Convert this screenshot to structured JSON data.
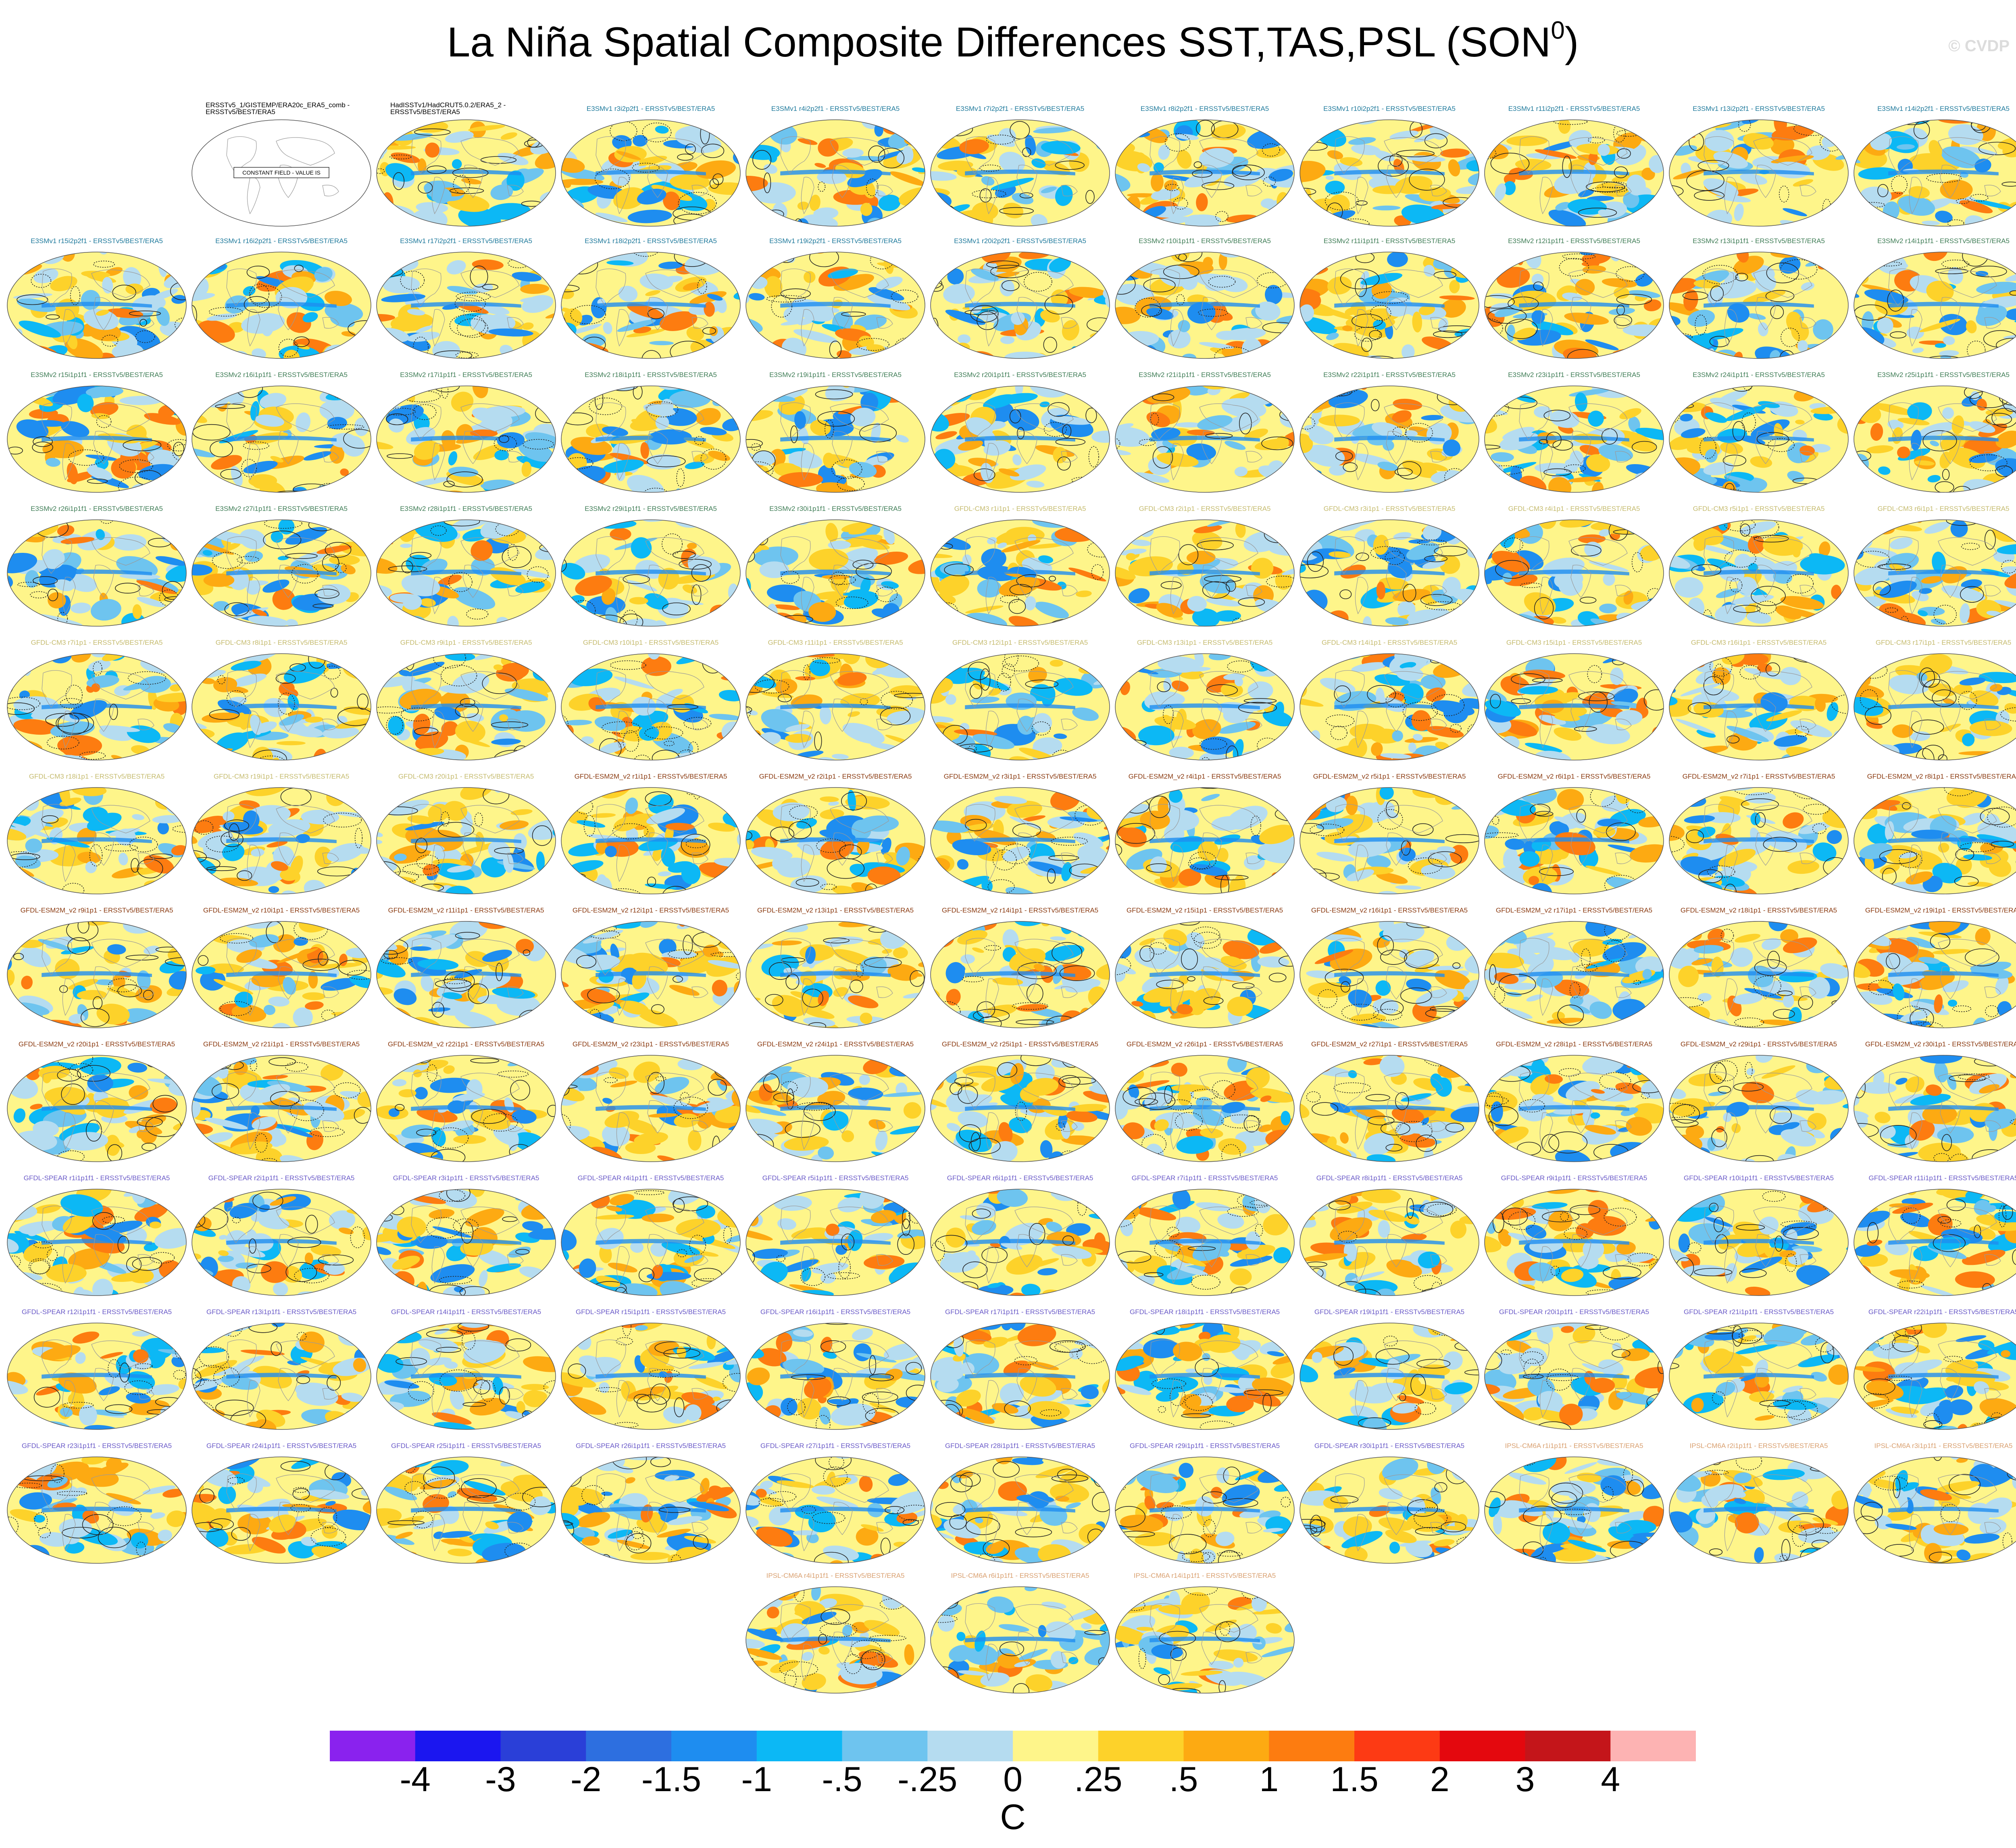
{
  "title_main": "La Niña Spatial Composite Differences SST,TAS,PSL (SON",
  "title_sup": "0",
  "title_end": ")",
  "watermark": "© CVDP",
  "constant_field_label": "CONSTANT FIELD - VALUE IS",
  "chart_data": {
    "type": "heatmap",
    "title": "La Niña Spatial Composite Differences SST,TAS,PSL (SON0)",
    "colorbar": {
      "unit": "C",
      "tick_labels": [
        "-4",
        "-3",
        "-2",
        "-1.5",
        "-1",
        "-.5",
        "-.25",
        "0",
        ".25",
        ".5",
        "1",
        "1.5",
        "2",
        "3",
        "4"
      ],
      "colors": [
        "#8a22ee",
        "#1b16f0",
        "#2a3fd8",
        "#2d6fe0",
        "#1e8df0",
        "#0cb8f5",
        "#6ec4ef",
        "#b5dcf0",
        "#fef58a",
        "#fdd22a",
        "#fdaa12",
        "#fd7c10",
        "#fd3a14",
        "#e4080e",
        "#c4151a",
        "#fdb3b3"
      ]
    },
    "panels": [
      {
        "label": "ERSSTv5_1/GISTEMP/ERA20c_ERA5_comb - ERSSTv5/BEST/ERA5",
        "color": "#000000",
        "constant": true
      },
      {
        "label": "HadISSTv1/HadCRUT5.0.2/ERA5_2 - ERSSTv5/BEST/ERA5",
        "color": "#000000"
      },
      {
        "label": "E3SMv1 r3i2p2f1 - ERSSTv5/BEST/ERA5",
        "color": "#1f7a9c"
      },
      {
        "label": "E3SMv1 r4i2p2f1 - ERSSTv5/BEST/ERA5",
        "color": "#1f7a9c"
      },
      {
        "label": "E3SMv1 r7i2p2f1 - ERSSTv5/BEST/ERA5",
        "color": "#1f7a9c"
      },
      {
        "label": "E3SMv1 r8i2p2f1 - ERSSTv5/BEST/ERA5",
        "color": "#1f7a9c"
      },
      {
        "label": "E3SMv1 r10i2p2f1 - ERSSTv5/BEST/ERA5",
        "color": "#1f7a9c"
      },
      {
        "label": "E3SMv1 r11i2p2f1 - ERSSTv5/BEST/ERA5",
        "color": "#1f7a9c"
      },
      {
        "label": "E3SMv1 r13i2p2f1 - ERSSTv5/BEST/ERA5",
        "color": "#1f7a9c"
      },
      {
        "label": "E3SMv1 r14i2p2f1 - ERSSTv5/BEST/ERA5",
        "color": "#1f7a9c"
      },
      {
        "label": "E3SMv1 r15i2p2f1 - ERSSTv5/BEST/ERA5",
        "color": "#1f7a9c"
      },
      {
        "label": "E3SMv1 r16i2p2f1 - ERSSTv5/BEST/ERA5",
        "color": "#1f7a9c"
      },
      {
        "label": "E3SMv1 r17i2p2f1 - ERSSTv5/BEST/ERA5",
        "color": "#1f7a9c"
      },
      {
        "label": "E3SMv1 r18i2p2f1 - ERSSTv5/BEST/ERA5",
        "color": "#1f7a9c"
      },
      {
        "label": "E3SMv1 r19i2p2f1 - ERSSTv5/BEST/ERA5",
        "color": "#1f7a9c"
      },
      {
        "label": "E3SMv1 r20i2p2f1 - ERSSTv5/BEST/ERA5",
        "color": "#1f7a9c"
      },
      {
        "label": "E3SMv2 r10i1p1f1 - ERSSTv5/BEST/ERA5",
        "color": "#3f7d56"
      },
      {
        "label": "E3SMv2 r11i1p1f1 - ERSSTv5/BEST/ERA5",
        "color": "#3f7d56"
      },
      {
        "label": "E3SMv2 r12i1p1f1 - ERSSTv5/BEST/ERA5",
        "color": "#3f7d56"
      },
      {
        "label": "E3SMv2 r13i1p1f1 - ERSSTv5/BEST/ERA5",
        "color": "#3f7d56"
      },
      {
        "label": "E3SMv2 r14i1p1f1 - ERSSTv5/BEST/ERA5",
        "color": "#3f7d56"
      },
      {
        "label": "E3SMv2 r15i1p1f1 - ERSSTv5/BEST/ERA5",
        "color": "#3f7d56"
      },
      {
        "label": "E3SMv2 r16i1p1f1 - ERSSTv5/BEST/ERA5",
        "color": "#3f7d56"
      },
      {
        "label": "E3SMv2 r17i1p1f1 - ERSSTv5/BEST/ERA5",
        "color": "#3f7d56"
      },
      {
        "label": "E3SMv2 r18i1p1f1 - ERSSTv5/BEST/ERA5",
        "color": "#3f7d56"
      },
      {
        "label": "E3SMv2 r19i1p1f1 - ERSSTv5/BEST/ERA5",
        "color": "#3f7d56"
      },
      {
        "label": "E3SMv2 r20i1p1f1 - ERSSTv5/BEST/ERA5",
        "color": "#3f7d56"
      },
      {
        "label": "E3SMv2 r21i1p1f1 - ERSSTv5/BEST/ERA5",
        "color": "#3f7d56"
      },
      {
        "label": "E3SMv2 r22i1p1f1 - ERSSTv5/BEST/ERA5",
        "color": "#3f7d56"
      },
      {
        "label": "E3SMv2 r23i1p1f1 - ERSSTv5/BEST/ERA5",
        "color": "#3f7d56"
      },
      {
        "label": "E3SMv2 r24i1p1f1 - ERSSTv5/BEST/ERA5",
        "color": "#3f7d56"
      },
      {
        "label": "E3SMv2 r25i1p1f1 - ERSSTv5/BEST/ERA5",
        "color": "#3f7d56"
      },
      {
        "label": "E3SMv2 r26i1p1f1 - ERSSTv5/BEST/ERA5",
        "color": "#3f7d56"
      },
      {
        "label": "E3SMv2 r27i1p1f1 - ERSSTv5/BEST/ERA5",
        "color": "#3f7d56"
      },
      {
        "label": "E3SMv2 r28i1p1f1 - ERSSTv5/BEST/ERA5",
        "color": "#3f7d56"
      },
      {
        "label": "E3SMv2 r29i1p1f1 - ERSSTv5/BEST/ERA5",
        "color": "#3f7d56"
      },
      {
        "label": "E3SMv2 r30i1p1f1 - ERSSTv5/BEST/ERA5",
        "color": "#3f7d56"
      },
      {
        "label": "GFDL-CM3 r1i1p1 - ERSSTv5/BEST/ERA5",
        "color": "#c5bb6e"
      },
      {
        "label": "GFDL-CM3 r2i1p1 - ERSSTv5/BEST/ERA5",
        "color": "#c5bb6e"
      },
      {
        "label": "GFDL-CM3 r3i1p1 - ERSSTv5/BEST/ERA5",
        "color": "#c5bb6e"
      },
      {
        "label": "GFDL-CM3 r4i1p1 - ERSSTv5/BEST/ERA5",
        "color": "#c5bb6e"
      },
      {
        "label": "GFDL-CM3 r5i1p1 - ERSSTv5/BEST/ERA5",
        "color": "#c5bb6e"
      },
      {
        "label": "GFDL-CM3 r6i1p1 - ERSSTv5/BEST/ERA5",
        "color": "#c5bb6e"
      },
      {
        "label": "GFDL-CM3 r7i1p1 - ERSSTv5/BEST/ERA5",
        "color": "#c5bb6e"
      },
      {
        "label": "GFDL-CM3 r8i1p1 - ERSSTv5/BEST/ERA5",
        "color": "#c5bb6e"
      },
      {
        "label": "GFDL-CM3 r9i1p1 - ERSSTv5/BEST/ERA5",
        "color": "#c5bb6e"
      },
      {
        "label": "GFDL-CM3 r10i1p1 - ERSSTv5/BEST/ERA5",
        "color": "#c5bb6e"
      },
      {
        "label": "GFDL-CM3 r11i1p1 - ERSSTv5/BEST/ERA5",
        "color": "#c5bb6e"
      },
      {
        "label": "GFDL-CM3 r12i1p1 - ERSSTv5/BEST/ERA5",
        "color": "#c5bb6e"
      },
      {
        "label": "GFDL-CM3 r13i1p1 - ERSSTv5/BEST/ERA5",
        "color": "#c5bb6e"
      },
      {
        "label": "GFDL-CM3 r14i1p1 - ERSSTv5/BEST/ERA5",
        "color": "#c5bb6e"
      },
      {
        "label": "GFDL-CM3 r15i1p1 - ERSSTv5/BEST/ERA5",
        "color": "#c5bb6e"
      },
      {
        "label": "GFDL-CM3 r16i1p1 - ERSSTv5/BEST/ERA5",
        "color": "#c5bb6e"
      },
      {
        "label": "GFDL-CM3 r17i1p1 - ERSSTv5/BEST/ERA5",
        "color": "#c5bb6e"
      },
      {
        "label": "GFDL-CM3 r18i1p1 - ERSSTv5/BEST/ERA5",
        "color": "#c5bb6e"
      },
      {
        "label": "GFDL-CM3 r19i1p1 - ERSSTv5/BEST/ERA5",
        "color": "#c5bb6e"
      },
      {
        "label": "GFDL-CM3 r20i1p1 - ERSSTv5/BEST/ERA5",
        "color": "#c5bb6e"
      },
      {
        "label": "GFDL-ESM2M_v2 r1i1p1 - ERSSTv5/BEST/ERA5",
        "color": "#8a3a10"
      },
      {
        "label": "GFDL-ESM2M_v2 r2i1p1 - ERSSTv5/BEST/ERA5",
        "color": "#8a3a10"
      },
      {
        "label": "GFDL-ESM2M_v2 r3i1p1 - ERSSTv5/BEST/ERA5",
        "color": "#8a3a10"
      },
      {
        "label": "GFDL-ESM2M_v2 r4i1p1 - ERSSTv5/BEST/ERA5",
        "color": "#8a3a10"
      },
      {
        "label": "GFDL-ESM2M_v2 r5i1p1 - ERSSTv5/BEST/ERA5",
        "color": "#8a3a10"
      },
      {
        "label": "GFDL-ESM2M_v2 r6i1p1 - ERSSTv5/BEST/ERA5",
        "color": "#8a3a10"
      },
      {
        "label": "GFDL-ESM2M_v2 r7i1p1 - ERSSTv5/BEST/ERA5",
        "color": "#8a3a10"
      },
      {
        "label": "GFDL-ESM2M_v2 r8i1p1 - ERSSTv5/BEST/ERA5",
        "color": "#8a3a10"
      },
      {
        "label": "GFDL-ESM2M_v2 r9i1p1 - ERSSTv5/BEST/ERA5",
        "color": "#8a3a10"
      },
      {
        "label": "GFDL-ESM2M_v2 r10i1p1 - ERSSTv5/BEST/ERA5",
        "color": "#8a3a10"
      },
      {
        "label": "GFDL-ESM2M_v2 r11i1p1 - ERSSTv5/BEST/ERA5",
        "color": "#8a3a10"
      },
      {
        "label": "GFDL-ESM2M_v2 r12i1p1 - ERSSTv5/BEST/ERA5",
        "color": "#8a3a10"
      },
      {
        "label": "GFDL-ESM2M_v2 r13i1p1 - ERSSTv5/BEST/ERA5",
        "color": "#8a3a10"
      },
      {
        "label": "GFDL-ESM2M_v2 r14i1p1 - ERSSTv5/BEST/ERA5",
        "color": "#8a3a10"
      },
      {
        "label": "GFDL-ESM2M_v2 r15i1p1 - ERSSTv5/BEST/ERA5",
        "color": "#8a3a10"
      },
      {
        "label": "GFDL-ESM2M_v2 r16i1p1 - ERSSTv5/BEST/ERA5",
        "color": "#8a3a10"
      },
      {
        "label": "GFDL-ESM2M_v2 r17i1p1 - ERSSTv5/BEST/ERA5",
        "color": "#8a3a10"
      },
      {
        "label": "GFDL-ESM2M_v2 r18i1p1 - ERSSTv5/BEST/ERA5",
        "color": "#8a3a10"
      },
      {
        "label": "GFDL-ESM2M_v2 r19i1p1 - ERSSTv5/BEST/ERA5",
        "color": "#8a3a10"
      },
      {
        "label": "GFDL-ESM2M_v2 r20i1p1 - ERSSTv5/BEST/ERA5",
        "color": "#8a3a10"
      },
      {
        "label": "GFDL-ESM2M_v2 r21i1p1 - ERSSTv5/BEST/ERA5",
        "color": "#8a3a10"
      },
      {
        "label": "GFDL-ESM2M_v2 r22i1p1 - ERSSTv5/BEST/ERA5",
        "color": "#8a3a10"
      },
      {
        "label": "GFDL-ESM2M_v2 r23i1p1 - ERSSTv5/BEST/ERA5",
        "color": "#8a3a10"
      },
      {
        "label": "GFDL-ESM2M_v2 r24i1p1 - ERSSTv5/BEST/ERA5",
        "color": "#8a3a10"
      },
      {
        "label": "GFDL-ESM2M_v2 r25i1p1 - ERSSTv5/BEST/ERA5",
        "color": "#8a3a10"
      },
      {
        "label": "GFDL-ESM2M_v2 r26i1p1 - ERSSTv5/BEST/ERA5",
        "color": "#8a3a10"
      },
      {
        "label": "GFDL-ESM2M_v2 r27i1p1 - ERSSTv5/BEST/ERA5",
        "color": "#8a3a10"
      },
      {
        "label": "GFDL-ESM2M_v2 r28i1p1 - ERSSTv5/BEST/ERA5",
        "color": "#8a3a10"
      },
      {
        "label": "GFDL-ESM2M_v2 r29i1p1 - ERSSTv5/BEST/ERA5",
        "color": "#8a3a10"
      },
      {
        "label": "GFDL-ESM2M_v2 r30i1p1 - ERSSTv5/BEST/ERA5",
        "color": "#8a3a10"
      },
      {
        "label": "GFDL-SPEAR r1i1p1f1 - ERSSTv5/BEST/ERA5",
        "color": "#6a5ac8"
      },
      {
        "label": "GFDL-SPEAR r2i1p1f1 - ERSSTv5/BEST/ERA5",
        "color": "#6a5ac8"
      },
      {
        "label": "GFDL-SPEAR r3i1p1f1 - ERSSTv5/BEST/ERA5",
        "color": "#6a5ac8"
      },
      {
        "label": "GFDL-SPEAR r4i1p1f1 - ERSSTv5/BEST/ERA5",
        "color": "#6a5ac8"
      },
      {
        "label": "GFDL-SPEAR r5i1p1f1 - ERSSTv5/BEST/ERA5",
        "color": "#6a5ac8"
      },
      {
        "label": "GFDL-SPEAR r6i1p1f1 - ERSSTv5/BEST/ERA5",
        "color": "#6a5ac8"
      },
      {
        "label": "GFDL-SPEAR r7i1p1f1 - ERSSTv5/BEST/ERA5",
        "color": "#6a5ac8"
      },
      {
        "label": "GFDL-SPEAR r8i1p1f1 - ERSSTv5/BEST/ERA5",
        "color": "#6a5ac8"
      },
      {
        "label": "GFDL-SPEAR r9i1p1f1 - ERSSTv5/BEST/ERA5",
        "color": "#6a5ac8"
      },
      {
        "label": "GFDL-SPEAR r10i1p1f1 - ERSSTv5/BEST/ERA5",
        "color": "#6a5ac8"
      },
      {
        "label": "GFDL-SPEAR r11i1p1f1 - ERSSTv5/BEST/ERA5",
        "color": "#6a5ac8"
      },
      {
        "label": "GFDL-SPEAR r12i1p1f1 - ERSSTv5/BEST/ERA5",
        "color": "#6a5ac8"
      },
      {
        "label": "GFDL-SPEAR r13i1p1f1 - ERSSTv5/BEST/ERA5",
        "color": "#6a5ac8"
      },
      {
        "label": "GFDL-SPEAR r14i1p1f1 - ERSSTv5/BEST/ERA5",
        "color": "#6a5ac8"
      },
      {
        "label": "GFDL-SPEAR r15i1p1f1 - ERSSTv5/BEST/ERA5",
        "color": "#6a5ac8"
      },
      {
        "label": "GFDL-SPEAR r16i1p1f1 - ERSSTv5/BEST/ERA5",
        "color": "#6a5ac8"
      },
      {
        "label": "GFDL-SPEAR r17i1p1f1 - ERSSTv5/BEST/ERA5",
        "color": "#6a5ac8"
      },
      {
        "label": "GFDL-SPEAR r18i1p1f1 - ERSSTv5/BEST/ERA5",
        "color": "#6a5ac8"
      },
      {
        "label": "GFDL-SPEAR r19i1p1f1 - ERSSTv5/BEST/ERA5",
        "color": "#6a5ac8"
      },
      {
        "label": "GFDL-SPEAR r20i1p1f1 - ERSSTv5/BEST/ERA5",
        "color": "#6a5ac8"
      },
      {
        "label": "GFDL-SPEAR r21i1p1f1 - ERSSTv5/BEST/ERA5",
        "color": "#6a5ac8"
      },
      {
        "label": "GFDL-SPEAR r22i1p1f1 - ERSSTv5/BEST/ERA5",
        "color": "#6a5ac8"
      },
      {
        "label": "GFDL-SPEAR r23i1p1f1 - ERSSTv5/BEST/ERA5",
        "color": "#6a5ac8"
      },
      {
        "label": "GFDL-SPEAR r24i1p1f1 - ERSSTv5/BEST/ERA5",
        "color": "#6a5ac8"
      },
      {
        "label": "GFDL-SPEAR r25i1p1f1 - ERSSTv5/BEST/ERA5",
        "color": "#6a5ac8"
      },
      {
        "label": "GFDL-SPEAR r26i1p1f1 - ERSSTv5/BEST/ERA5",
        "color": "#6a5ac8"
      },
      {
        "label": "GFDL-SPEAR r27i1p1f1 - ERSSTv5/BEST/ERA5",
        "color": "#6a5ac8"
      },
      {
        "label": "GFDL-SPEAR r28i1p1f1 - ERSSTv5/BEST/ERA5",
        "color": "#6a5ac8"
      },
      {
        "label": "GFDL-SPEAR r29i1p1f1 - ERSSTv5/BEST/ERA5",
        "color": "#6a5ac8"
      },
      {
        "label": "GFDL-SPEAR r30i1p1f1 - ERSSTv5/BEST/ERA5",
        "color": "#6a5ac8"
      },
      {
        "label": "IPSL-CM6A r1i1p1f1 - ERSSTv5/BEST/ERA5",
        "color": "#d9a070"
      },
      {
        "label": "IPSL-CM6A r2i1p1f1 - ERSSTv5/BEST/ERA5",
        "color": "#d9a070"
      },
      {
        "label": "IPSL-CM6A r3i1p1f1 - ERSSTv5/BEST/ERA5",
        "color": "#d9a070"
      },
      {
        "label": "IPSL-CM6A r4i1p1f1 - ERSSTv5/BEST/ERA5",
        "color": "#d9a070"
      },
      {
        "label": "IPSL-CM6A r6i1p1f1 - ERSSTv5/BEST/ERA5",
        "color": "#d9a070"
      },
      {
        "label": "IPSL-CM6A r14i1p1f1 - ERSSTv5/BEST/ERA5",
        "color": "#d9a070"
      }
    ]
  }
}
